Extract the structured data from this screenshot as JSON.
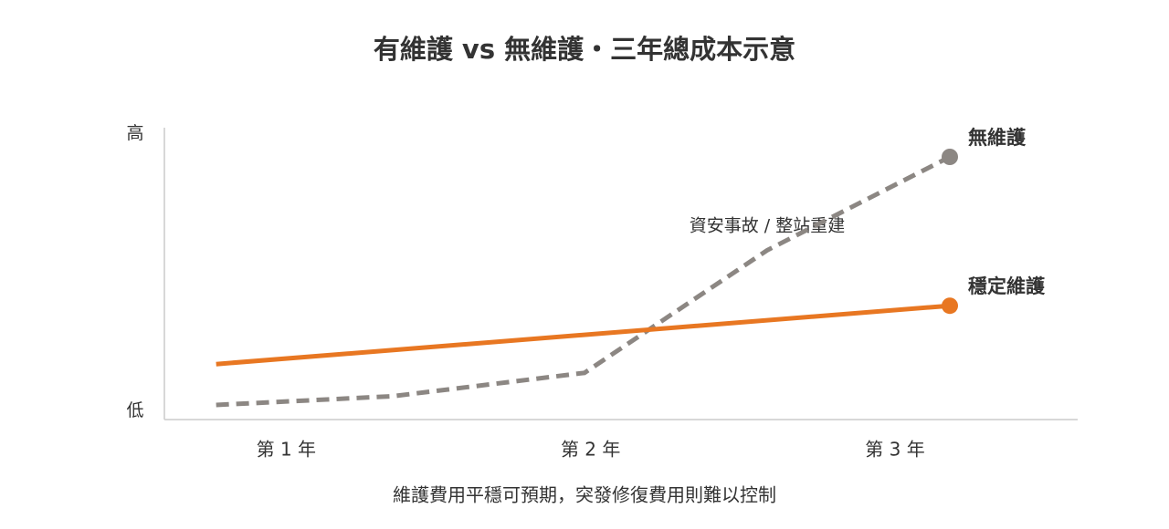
{
  "chart_data": {
    "type": "line",
    "title": "有維護 vs 無維護・三年總成本示意",
    "subtitle": "維護費用平穩可預期，突發修復費用則難以控制",
    "annotations": [
      "資安事故 / 整站重建"
    ],
    "xlim": [
      0.6,
      3.6
    ],
    "xticks": [
      {
        "value": 1,
        "label": "第 1 年"
      },
      {
        "value": 2,
        "label": "第 2 年"
      },
      {
        "value": 3,
        "label": "第 3 年"
      }
    ],
    "ylim": [
      0,
      100
    ],
    "yticks": [
      {
        "value": 3,
        "label": "低"
      },
      {
        "value": 98,
        "label": "高"
      }
    ],
    "series": [
      {
        "name": "無維護",
        "color": "#8c8783",
        "dashed": true,
        "x": [
          0.77,
          1.35,
          1.98,
          2.58,
          3.18
        ],
        "values": [
          5,
          8,
          16,
          58,
          90
        ]
      },
      {
        "name": "穩定維護",
        "color": "#e87722",
        "dashed": false,
        "x": [
          0.77,
          3.18
        ],
        "values": [
          19,
          39
        ]
      }
    ]
  }
}
